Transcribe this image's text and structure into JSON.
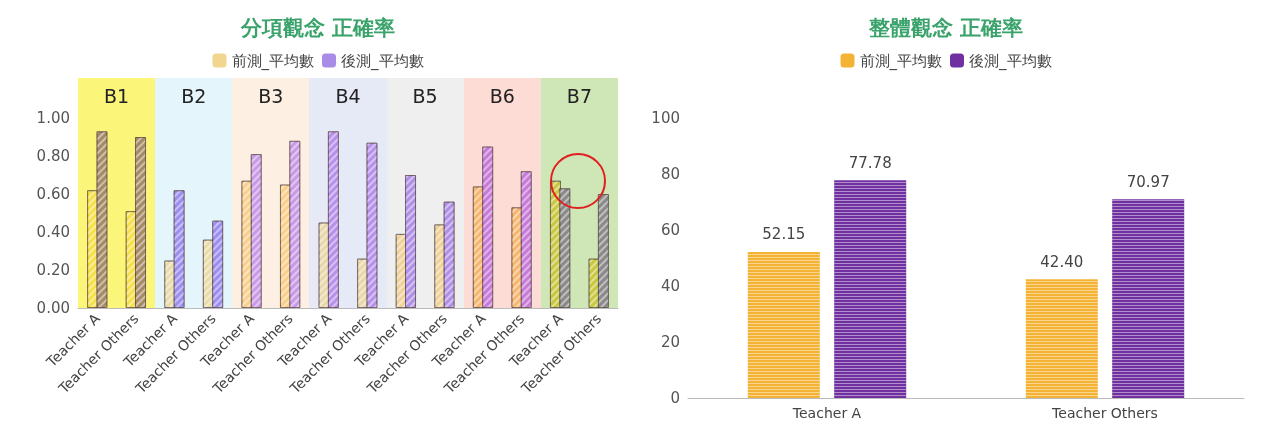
{
  "chart_data": [
    {
      "type": "bar",
      "title": "分項觀念 正確率",
      "categories": [
        "Teacher A",
        "Teacher Others",
        "Teacher A",
        "Teacher Others",
        "Teacher A",
        "Teacher Others",
        "Teacher A",
        "Teacher Others",
        "Teacher A",
        "Teacher Others",
        "Teacher A",
        "Teacher Others",
        "Teacher A",
        "Teacher Others"
      ],
      "series": [
        {
          "name": "前測_平均數",
          "color": "#f2d58e",
          "colors": [
            "#f5e04a",
            "#f5e04a",
            "#e8dcaa",
            "#e8dcaa",
            "#f9cf8a",
            "#f9cf8a",
            "#e8d7a8",
            "#e8d7a8",
            "#efd29a",
            "#efd29a",
            "#f7b66e",
            "#f7b66e",
            "#c8c840",
            "#c8c840"
          ],
          "values": [
            0.62,
            0.51,
            0.25,
            0.36,
            0.67,
            0.65,
            0.45,
            0.26,
            0.39,
            0.44,
            0.64,
            0.53,
            0.67,
            0.26
          ]
        },
        {
          "name": "後測_平均數",
          "color": "#a98be8",
          "colors": [
            "#a68a68",
            "#a68a68",
            "#9b8ef0",
            "#9b8ef0",
            "#c99ae8",
            "#c99ae8",
            "#b790ec",
            "#b790ec",
            "#b08fe8",
            "#b08fe8",
            "#c77ad8",
            "#c77ad8",
            "#8a8a8a",
            "#8a8a8a"
          ],
          "values": [
            0.93,
            0.9,
            0.62,
            0.46,
            0.81,
            0.88,
            0.93,
            0.87,
            0.7,
            0.56,
            0.85,
            0.72,
            0.63,
            0.6
          ]
        }
      ],
      "annotations": [
        "B1",
        "B2",
        "B3",
        "B4",
        "B5",
        "B6",
        "B7"
      ],
      "ylim": [
        0,
        1
      ],
      "yticks": [
        {
          "value": 0,
          "label": "0.00"
        },
        {
          "value": 0.2,
          "label": "0.20"
        },
        {
          "value": 0.4,
          "label": "0.40"
        },
        {
          "value": 0.6,
          "label": "0.60"
        },
        {
          "value": 0.8,
          "label": "0.80"
        },
        {
          "value": 1,
          "label": "1.00"
        }
      ],
      "grid": false,
      "legend": "top"
    },
    {
      "type": "bar",
      "title": "整體觀念 正確率",
      "categories": [
        "Teacher A",
        "Teacher Others"
      ],
      "series": [
        {
          "name": "前測_平均數",
          "color": "#f5b335",
          "values": [
            52.15,
            42.4
          ],
          "value_labels": [
            "52.15",
            "42.40"
          ]
        },
        {
          "name": "後測_平均數",
          "color": "#7030a0",
          "values": [
            77.78,
            70.97
          ],
          "value_labels": [
            "77.78",
            "70.97"
          ]
        }
      ],
      "ylim": [
        0,
        100
      ],
      "yticks": [
        0,
        20,
        40,
        60,
        80,
        100
      ],
      "grid": false,
      "legend": "top"
    }
  ]
}
